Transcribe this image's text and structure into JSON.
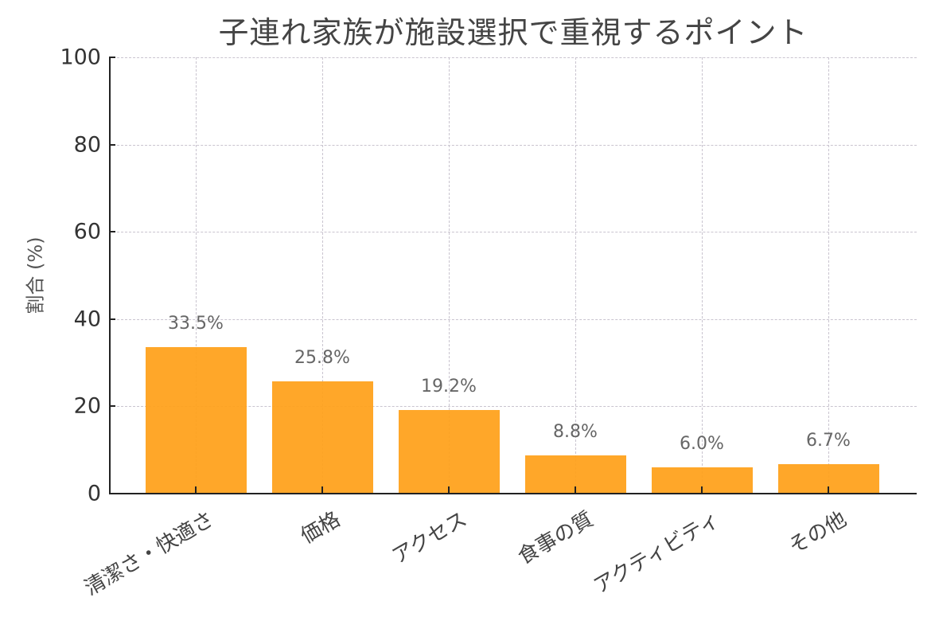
{
  "chart_data": {
    "type": "bar",
    "title": "子連れ家族が施設選択で重視するポイント",
    "xlabel": "",
    "ylabel": "割合 (%)",
    "categories": [
      "清潔さ・快適さ",
      "価格",
      "アクセス",
      "食事の質",
      "アクティビティ",
      "その他"
    ],
    "values": [
      33.5,
      25.8,
      19.2,
      8.8,
      6.0,
      6.7
    ],
    "value_labels": [
      "33.5%",
      "25.8%",
      "19.2%",
      "8.8%",
      "6.0%",
      "6.7%"
    ],
    "ylim": [
      0,
      100
    ],
    "yticks": [
      0,
      20,
      40,
      60,
      80,
      100
    ],
    "grid": true,
    "grid_style": "dashed",
    "legend": null,
    "bar_color": "#FFA019",
    "xtick_rotation": 30
  }
}
